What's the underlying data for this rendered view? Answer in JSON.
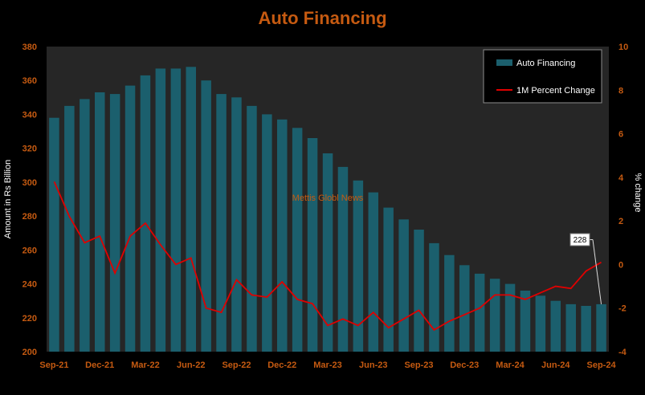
{
  "colors": {
    "background": "#000000",
    "plot_area": "#262626",
    "title": "#c55a11",
    "tick_labels": "#c55a11",
    "bars": "#1b5f6d",
    "line": "#e00000",
    "watermark": "#c55a11",
    "axis_title": "#ffffff"
  },
  "chart_data": {
    "type": "bar",
    "title": "Auto Financing",
    "xlabel": "",
    "ylabel": "Amount in Rs Billion",
    "y2label": "% change",
    "ylim": [
      200,
      380
    ],
    "y2lim": [
      -4,
      10
    ],
    "yticks": [
      200,
      220,
      240,
      260,
      280,
      300,
      320,
      340,
      360,
      380
    ],
    "y2ticks": [
      -4,
      -2,
      0,
      2,
      4,
      6,
      8,
      10
    ],
    "xtick_labels": [
      "Sep-21",
      "Dec-21",
      "Mar-22",
      "Jun-22",
      "Sep-22",
      "Dec-22",
      "Mar-23",
      "Jun-23",
      "Sep-23",
      "Dec-23",
      "Mar-24",
      "Jun-24",
      "Sep-24"
    ],
    "grid": false,
    "legend_position": "top-right",
    "watermark": "Mettis Globl News",
    "categories": [
      "Sep-21",
      "Oct-21",
      "Nov-21",
      "Dec-21",
      "Jan-22",
      "Feb-22",
      "Mar-22",
      "Apr-22",
      "May-22",
      "Jun-22",
      "Jul-22",
      "Aug-22",
      "Sep-22",
      "Oct-22",
      "Nov-22",
      "Dec-22",
      "Jan-23",
      "Feb-23",
      "Mar-23",
      "Apr-23",
      "May-23",
      "Jun-23",
      "Jul-23",
      "Aug-23",
      "Sep-23",
      "Oct-23",
      "Nov-23",
      "Dec-23",
      "Jan-24",
      "Feb-24",
      "Mar-24",
      "Apr-24",
      "May-24",
      "Jun-24",
      "Jul-24",
      "Aug-24",
      "Sep-24"
    ],
    "series": [
      {
        "name": "Auto Financing",
        "type": "bar",
        "axis": "left",
        "values": [
          338,
          345,
          349,
          353,
          352,
          357,
          363,
          367,
          367,
          368,
          360,
          352,
          350,
          345,
          340,
          337,
          332,
          326,
          317,
          309,
          301,
          294,
          285,
          278,
          272,
          264,
          257,
          251,
          246,
          243,
          240,
          236,
          233,
          230,
          228,
          227,
          228
        ]
      },
      {
        "name": "1M Percent Change",
        "type": "line",
        "axis": "right",
        "values": [
          3.8,
          2.2,
          1.0,
          1.3,
          -0.4,
          1.3,
          1.9,
          0.9,
          0.0,
          0.3,
          -2.0,
          -2.2,
          -0.7,
          -1.4,
          -1.5,
          -0.8,
          -1.6,
          -1.8,
          -2.8,
          -2.5,
          -2.8,
          -2.2,
          -2.9,
          -2.5,
          -2.1,
          -3.0,
          -2.6,
          -2.3,
          -2.0,
          -1.4,
          -1.4,
          -1.6,
          -1.3,
          -1.0,
          -1.1,
          -0.3,
          0.1
        ]
      }
    ],
    "annotations": [
      {
        "text": "228",
        "series": "Auto Financing",
        "category": "Sep-24"
      }
    ]
  }
}
